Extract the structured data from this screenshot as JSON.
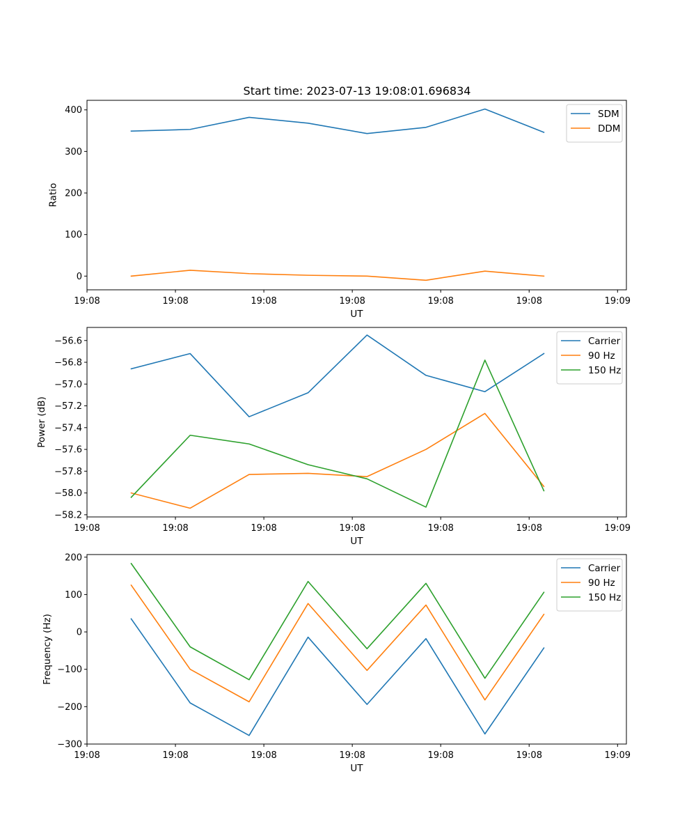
{
  "figure": {
    "title": "Start time: 2023-07-13 19:08:01.696834"
  },
  "chart_data": [
    {
      "type": "line",
      "title": "Start time: 2023-07-13 19:08:01.696834",
      "xlabel": "UT",
      "ylabel": "Ratio",
      "x": [
        0,
        1,
        2,
        3,
        4,
        5,
        6,
        7
      ],
      "xlim": [
        -0.75,
        8.4
      ],
      "x_ticks": [
        -0.75,
        0.75,
        2.25,
        3.75,
        5.25,
        6.75,
        8.25
      ],
      "x_tick_labels": [
        "19:08",
        "19:08",
        "19:08",
        "19:08",
        "19:08",
        "19:08",
        "19:09"
      ],
      "ylim": [
        -33,
        423
      ],
      "y_ticks": [
        0,
        100,
        200,
        300,
        400
      ],
      "y_tick_labels": [
        "0",
        "100",
        "200",
        "300",
        "400"
      ],
      "legend_position": "top-right",
      "series": [
        {
          "name": "SDM",
          "color": "#1f77b4",
          "values": [
            349,
            353,
            382,
            368,
            343,
            358,
            402,
            346
          ]
        },
        {
          "name": "DDM",
          "color": "#ff7f0e",
          "values": [
            0,
            14,
            6,
            2,
            0,
            -10,
            12,
            0
          ]
        }
      ]
    },
    {
      "type": "line",
      "xlabel": "UT",
      "ylabel": "Power (dB)",
      "x": [
        0,
        1,
        2,
        3,
        4,
        5,
        6,
        7
      ],
      "xlim": [
        -0.75,
        8.4
      ],
      "x_ticks": [
        -0.75,
        0.75,
        2.25,
        3.75,
        5.25,
        6.75,
        8.25
      ],
      "x_tick_labels": [
        "19:08",
        "19:08",
        "19:08",
        "19:08",
        "19:08",
        "19:08",
        "19:09"
      ],
      "ylim": [
        -58.22,
        -56.48
      ],
      "y_ticks": [
        -58.2,
        -58.0,
        -57.8,
        -57.6,
        -57.4,
        -57.2,
        -57.0,
        -56.8,
        -56.6
      ],
      "y_tick_labels": [
        "−58.2",
        "−58.0",
        "−57.8",
        "−57.6",
        "−57.4",
        "−57.2",
        "−57.0",
        "−56.8",
        "−56.6"
      ],
      "legend_position": "top-right",
      "series": [
        {
          "name": "Carrier",
          "color": "#1f77b4",
          "values": [
            -56.86,
            -56.72,
            -57.3,
            -57.08,
            -56.55,
            -56.92,
            -57.07,
            -56.72
          ]
        },
        {
          "name": "90 Hz",
          "color": "#ff7f0e",
          "values": [
            -58.0,
            -58.14,
            -57.83,
            -57.82,
            -57.85,
            -57.6,
            -57.27,
            -57.94
          ]
        },
        {
          "name": "150 Hz",
          "color": "#2ca02c",
          "values": [
            -58.04,
            -57.47,
            -57.55,
            -57.74,
            -57.87,
            -58.13,
            -56.78,
            -57.98
          ]
        }
      ]
    },
    {
      "type": "line",
      "xlabel": "UT",
      "ylabel": "Frequency (Hz)",
      "x": [
        0,
        1,
        2,
        3,
        4,
        5,
        6,
        7
      ],
      "xlim": [
        -0.75,
        8.4
      ],
      "x_ticks": [
        -0.75,
        0.75,
        2.25,
        3.75,
        5.25,
        6.75,
        8.25
      ],
      "x_tick_labels": [
        "19:08",
        "19:08",
        "19:08",
        "19:08",
        "19:08",
        "19:08",
        "19:09"
      ],
      "ylim": [
        -300,
        207
      ],
      "y_ticks": [
        -300,
        -200,
        -100,
        0,
        100,
        200
      ],
      "y_tick_labels": [
        "−300",
        "−200",
        "−100",
        "0",
        "100",
        "200"
      ],
      "legend_position": "top-right",
      "series": [
        {
          "name": "Carrier",
          "color": "#1f77b4",
          "values": [
            35,
            -190,
            -277,
            -14,
            -194,
            -18,
            -273,
            -43
          ]
        },
        {
          "name": "90 Hz",
          "color": "#ff7f0e",
          "values": [
            125,
            -100,
            -187,
            76,
            -103,
            72,
            -182,
            47
          ]
        },
        {
          "name": "150 Hz",
          "color": "#2ca02c",
          "values": [
            183,
            -40,
            -128,
            135,
            -45,
            130,
            -124,
            106
          ]
        }
      ]
    }
  ]
}
